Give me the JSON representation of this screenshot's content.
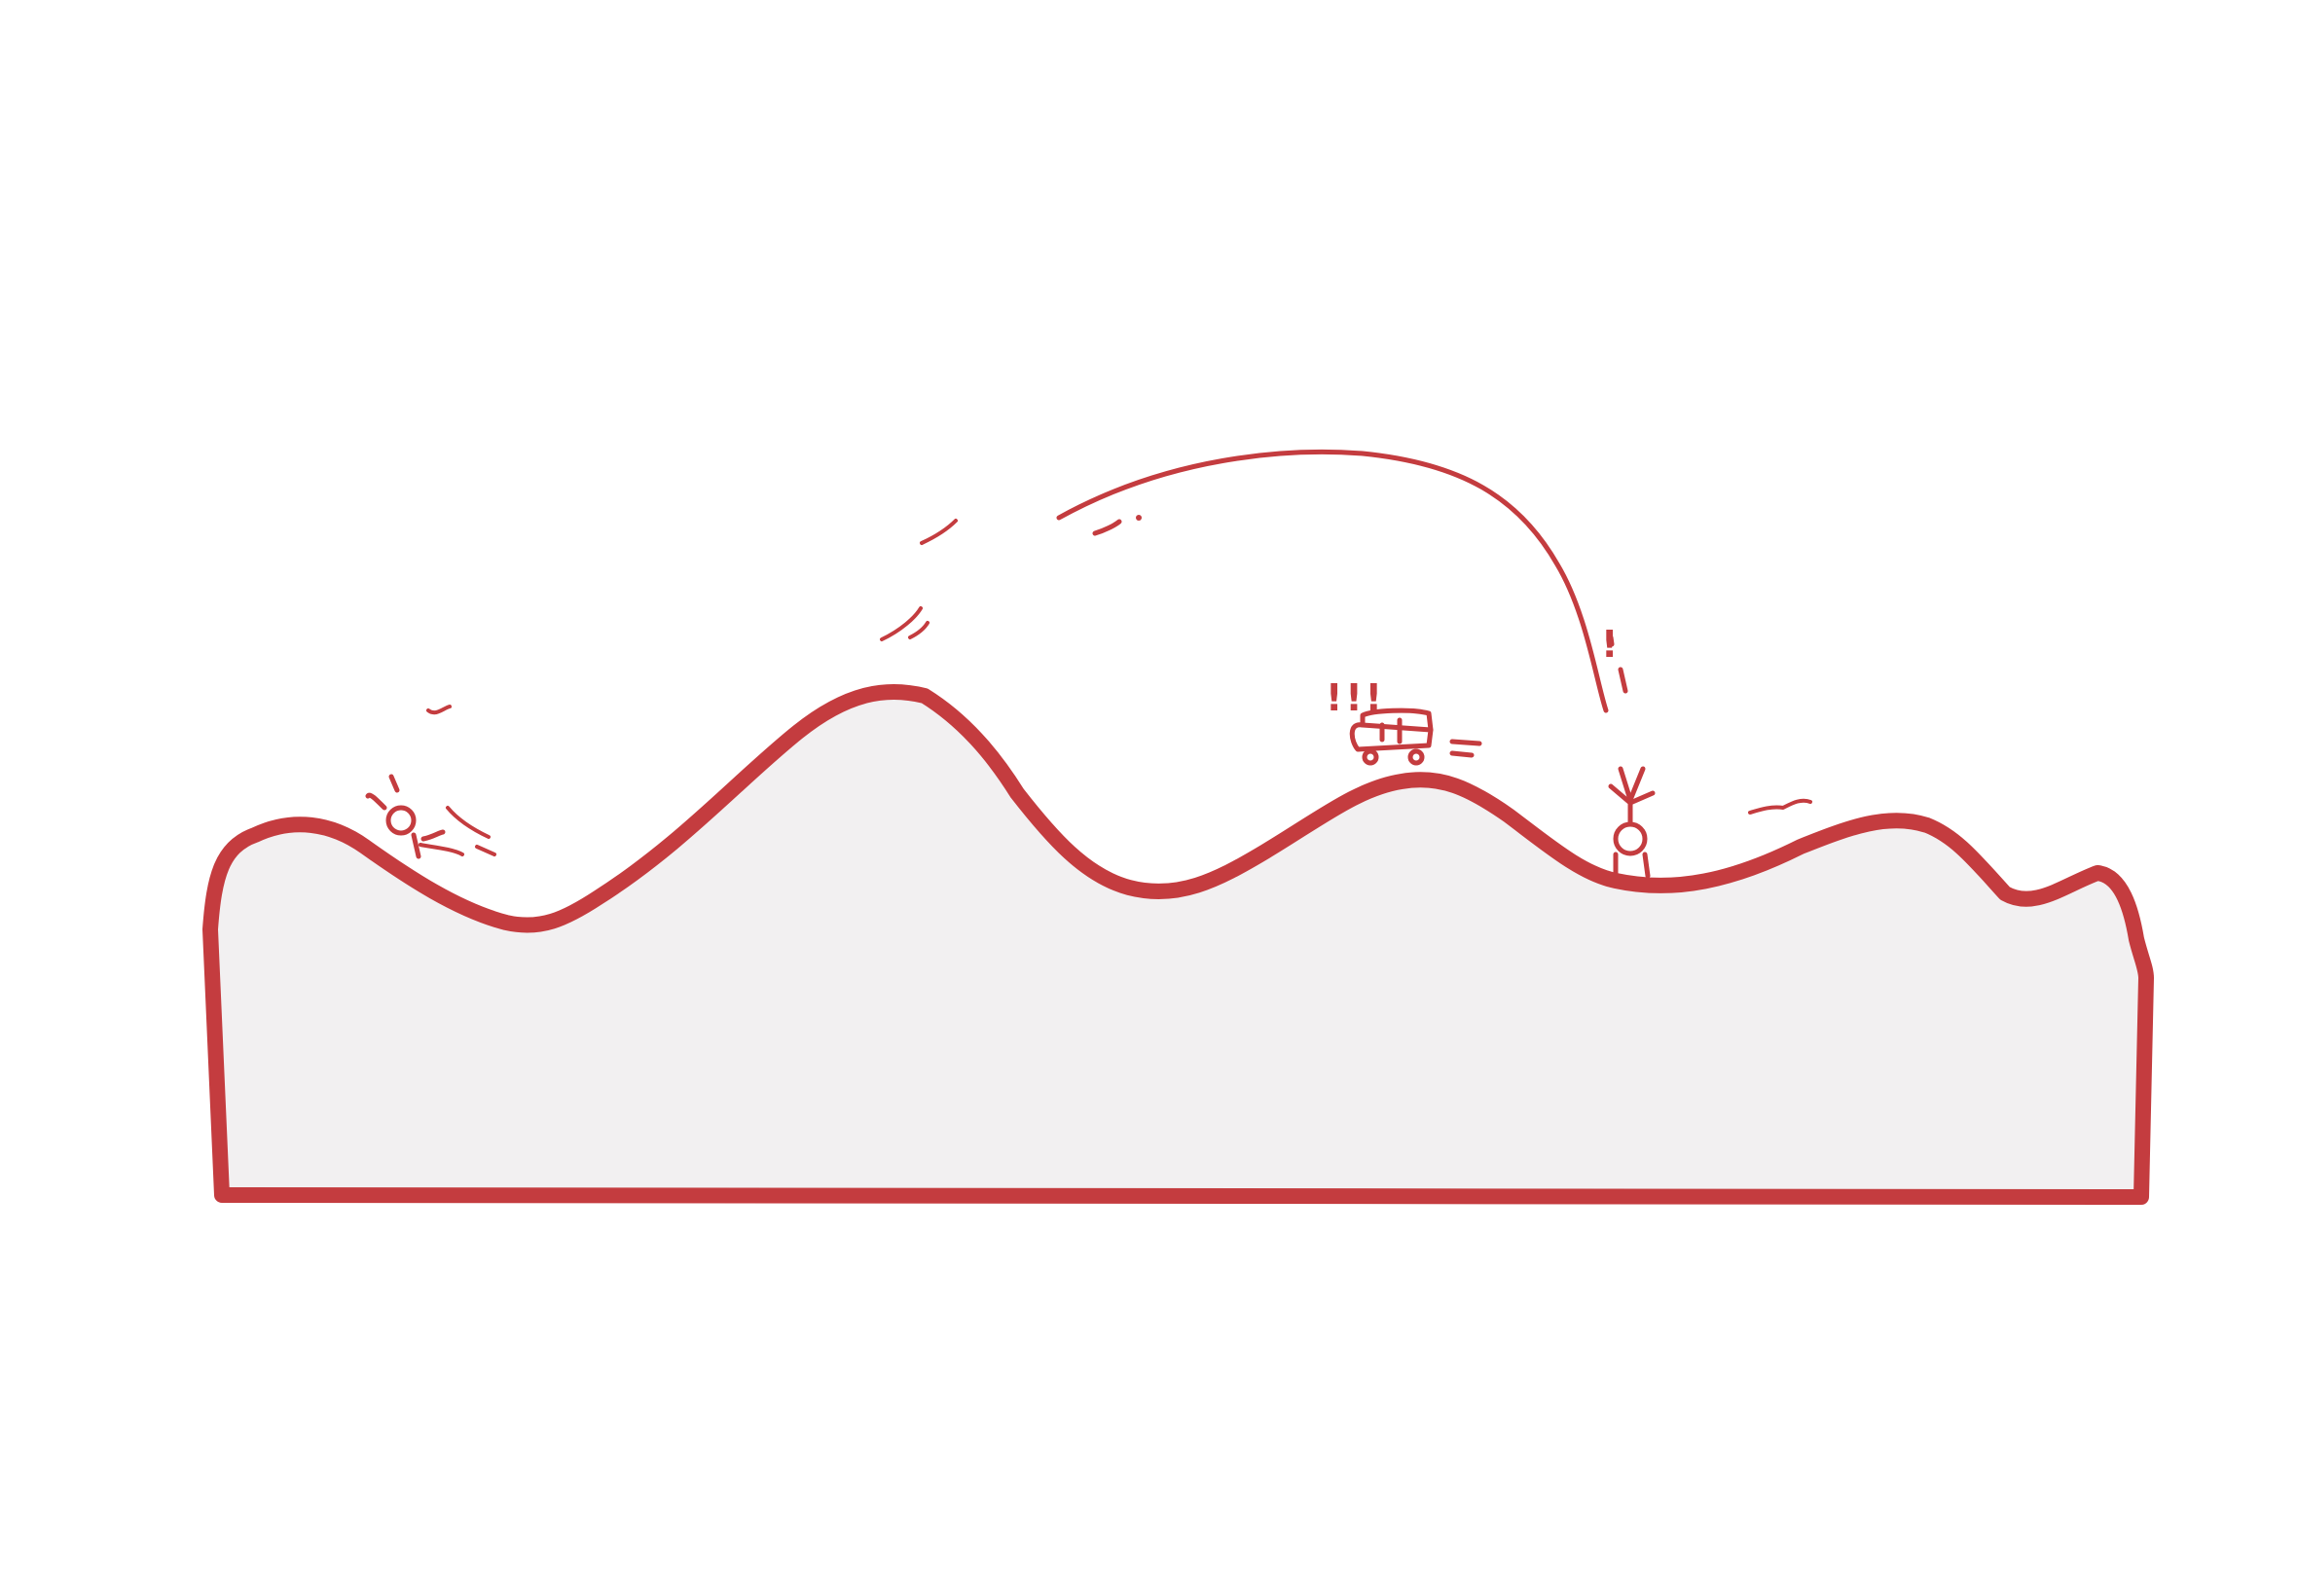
{
  "colors": {
    "ink": "#c43c3f",
    "ground_fill": "#f2f0f1",
    "background": "#ffffff"
  },
  "notes": {
    "start_label": "",
    "jump_label": "",
    "land_label": ""
  },
  "exclaim": {
    "car": "!!!",
    "landing": "!"
  },
  "icons": {
    "car": "car-icon",
    "start_figure": "stick-figure-icon",
    "end_figure": "stick-figure-icon"
  }
}
